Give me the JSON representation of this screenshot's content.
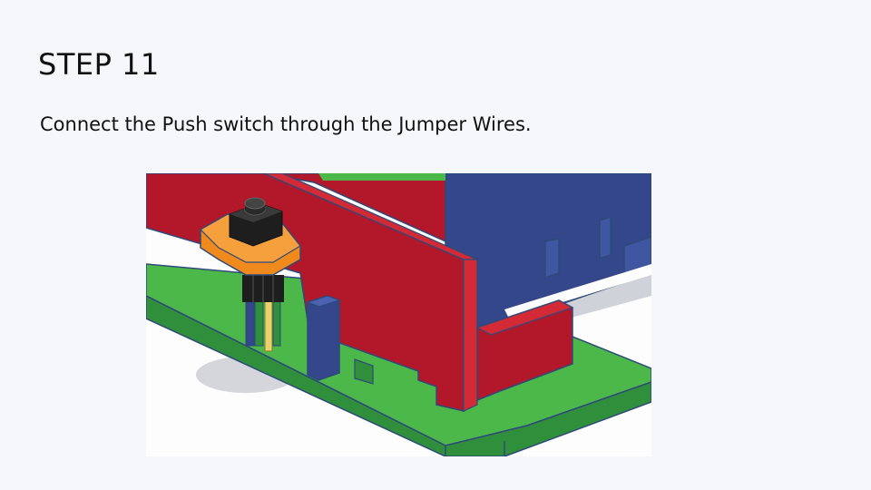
{
  "slide": {
    "title": "STEP 11",
    "instruction": "Connect the Push switch through the Jumper Wires."
  },
  "illustration": {
    "colors": {
      "background": "#fdfdfd",
      "board_green": "#4cb84a",
      "board_green_dark": "#2f8f3a",
      "wall_red": "#b3172a",
      "wall_red_light": "#d42a35",
      "block_blue": "#33478a",
      "outline": "#2d4a7a",
      "button_orange": "#f08a1c",
      "button_black": "#1e1e1e",
      "wire_yellow": "#e6d36a",
      "shadow": "#c9ccd2"
    }
  }
}
